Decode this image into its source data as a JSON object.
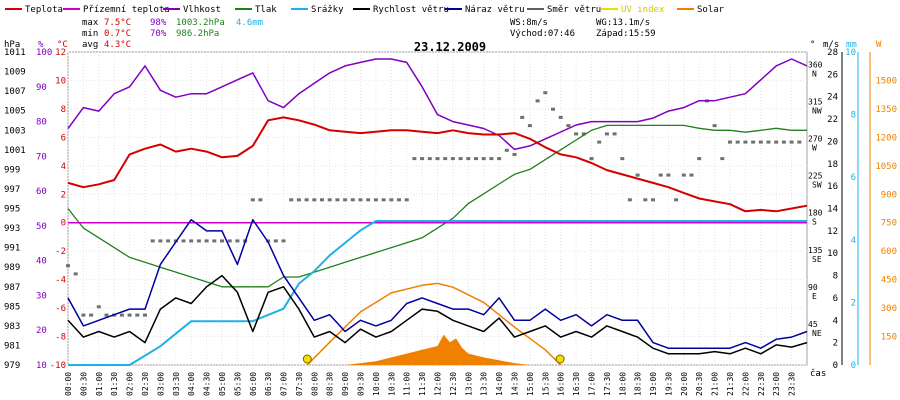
{
  "chart_data": {
    "type": "line",
    "title": "23.12.2009",
    "xlabel": "čas",
    "legend": [
      {
        "key": "temp",
        "label": "Teplota",
        "color": "#d40000"
      },
      {
        "key": "feel",
        "label": "Přízemní teplota",
        "color": "#cc00cc"
      },
      {
        "key": "hum",
        "label": "Vlhkost",
        "color": "#8000c0"
      },
      {
        "key": "press",
        "label": "Tlak",
        "color": "#208020"
      },
      {
        "key": "rain",
        "label": "Srážky",
        "color": "#20b0e8"
      },
      {
        "key": "ws",
        "label": "Rychlost větru",
        "color": "#000000"
      },
      {
        "key": "wg",
        "label": "Náraz větru",
        "color": "#0000a0"
      },
      {
        "key": "wd",
        "label": "Směr větru",
        "color": "#606060"
      },
      {
        "key": "uv",
        "label": "UV index",
        "color": "#e8e000"
      },
      {
        "key": "solar",
        "label": "Solar",
        "color": "#f08000"
      }
    ],
    "stats": {
      "max": {
        "label": "max",
        "temp": "7.5°C",
        "hum": "98%",
        "press": "1003.2hPa",
        "rain": "4.6mm"
      },
      "min": {
        "label": "min",
        "temp": "0.7°C",
        "hum": "70%",
        "press": "986.2hPa"
      },
      "avg": {
        "label": "avg",
        "temp": "4.3°C"
      }
    },
    "info": {
      "ws": "WS:8m/s",
      "wg": "WG:13.1m/s",
      "sunrise": "Východ:07:46",
      "sunset": "Západ:15:59"
    },
    "axes": {
      "press_ticks": [
        "1011",
        "1009",
        "1007",
        "1005",
        "1003",
        "1001",
        "999",
        "997",
        "995",
        "993",
        "991",
        "989",
        "987",
        "985",
        "983",
        "981",
        "979"
      ],
      "press_unit": "hPa",
      "hum_ticks": [
        "100",
        "90",
        "80",
        "70",
        "60",
        "50",
        "40",
        "30",
        "20",
        "10"
      ],
      "hum_unit": "%",
      "temp_ticks": [
        "12",
        "10",
        "8",
        "6",
        "4",
        "2",
        "0",
        "-2",
        "-4",
        "-6",
        "-8",
        "-10"
      ],
      "temp_unit": "°C",
      "dir_ticks": [
        "360 N",
        "315 NW",
        "270 W",
        "225 SW",
        "180 S",
        "135 SE",
        "90 E",
        "45 NE"
      ],
      "dir_unit": "°",
      "wind_ticks": [
        "28",
        "26",
        "24",
        "22",
        "20",
        "18",
        "16",
        "14",
        "12",
        "10",
        "8",
        "6",
        "4",
        "2",
        "0"
      ],
      "wind_unit": "m/s",
      "rain_ticks": [
        "10",
        "8",
        "6",
        "4",
        "2",
        "0"
      ],
      "rain_unit": "mm",
      "solar_ticks": [
        "1500",
        "1350",
        "1200",
        "1050",
        "900",
        "750",
        "600",
        "450",
        "300",
        "150"
      ],
      "solar_unit": "W"
    },
    "time_labels": [
      "00:00",
      "00:30",
      "01:00",
      "01:30",
      "02:00",
      "02:30",
      "03:00",
      "03:30",
      "04:00",
      "04:30",
      "05:00",
      "05:30",
      "06:00",
      "06:30",
      "07:00",
      "07:30",
      "08:00",
      "08:30",
      "09:00",
      "09:30",
      "10:00",
      "10:30",
      "11:00",
      "11:30",
      "12:00",
      "12:30",
      "13:00",
      "13:30",
      "14:00",
      "14:30",
      "15:00",
      "15:30",
      "16:00",
      "16:30",
      "17:00",
      "17:30",
      "18:00",
      "18:30",
      "19:00",
      "19:30",
      "20:00",
      "20:30",
      "21:00",
      "21:30",
      "22:00",
      "22:30",
      "23:00",
      "23:30"
    ],
    "x_range": [
      0,
      24
    ],
    "ranges": {
      "temp": [
        -10,
        12
      ],
      "hum": [
        10,
        100
      ],
      "press": [
        979,
        1011
      ],
      "wind": [
        0,
        28
      ],
      "rain": [
        0,
        10
      ],
      "solar": [
        0,
        1650
      ],
      "dir": [
        0,
        380
      ]
    },
    "series": {
      "temp": {
        "t": [
          0,
          0.5,
          1,
          1.5,
          2,
          2.5,
          3,
          3.5,
          4,
          4.5,
          5,
          5.5,
          6,
          6.5,
          7,
          7.5,
          8,
          8.5,
          9,
          9.5,
          10,
          10.5,
          11,
          11.5,
          12,
          12.5,
          13,
          13.5,
          14,
          14.5,
          15,
          15.5,
          16,
          16.5,
          17,
          17.5,
          18,
          18.5,
          19,
          19.5,
          20,
          20.5,
          21,
          21.5,
          22,
          22.5,
          23,
          23.5,
          24
        ],
        "v": [
          2.8,
          2.5,
          2.7,
          3.0,
          4.8,
          5.2,
          5.5,
          5.0,
          5.2,
          5.0,
          4.6,
          4.7,
          5.4,
          7.2,
          7.4,
          7.2,
          6.9,
          6.5,
          6.4,
          6.3,
          6.4,
          6.5,
          6.5,
          6.4,
          6.3,
          6.5,
          6.3,
          6.2,
          6.2,
          6.3,
          5.9,
          5.3,
          4.8,
          4.6,
          4.2,
          3.7,
          3.4,
          3.1,
          2.8,
          2.5,
          2.1,
          1.7,
          1.5,
          1.3,
          0.8,
          0.9,
          0.8,
          1.0,
          1.2
        ]
      },
      "feel": {
        "t": [
          0,
          24
        ],
        "v": [
          0,
          0
        ]
      },
      "hum": {
        "t": [
          0,
          0.5,
          1,
          1.5,
          2,
          2.5,
          3,
          3.5,
          4,
          4.5,
          5,
          5.5,
          6,
          6.5,
          7,
          7.5,
          8,
          8.5,
          9,
          9.5,
          10,
          10.5,
          11,
          11.5,
          12,
          12.5,
          13,
          13.5,
          14,
          14.5,
          15,
          15.5,
          16,
          16.5,
          17,
          17.5,
          18,
          18.5,
          19,
          19.5,
          20,
          20.5,
          21,
          21.5,
          22,
          22.5,
          23,
          23.5,
          24
        ],
        "v": [
          78,
          84,
          83,
          88,
          90,
          96,
          89,
          87,
          88,
          88,
          90,
          92,
          94,
          86,
          84,
          88,
          91,
          94,
          96,
          97,
          98,
          98,
          97,
          90,
          82,
          80,
          79,
          78,
          76,
          72,
          73,
          75,
          77,
          79,
          80,
          80,
          80,
          80,
          81,
          83,
          84,
          86,
          86,
          87,
          88,
          92,
          96,
          98,
          96
        ]
      },
      "press": {
        "t": [
          0,
          0.5,
          1,
          1.5,
          2,
          2.5,
          3,
          3.5,
          4,
          4.5,
          5,
          5.5,
          6,
          6.5,
          7,
          7.5,
          8,
          8.5,
          9,
          9.5,
          10,
          10.5,
          11,
          11.5,
          12,
          12.5,
          13,
          13.5,
          14,
          14.5,
          15,
          15.5,
          16,
          16.5,
          17,
          17.5,
          18,
          18.5,
          19,
          19.5,
          20,
          20.5,
          21,
          21.5,
          22,
          22.5,
          23,
          23.5,
          24
        ],
        "v": [
          995,
          993,
          992,
          991,
          990,
          989.5,
          989,
          988.5,
          988,
          987.5,
          987,
          987,
          987,
          987,
          988,
          988,
          988.5,
          989,
          989.5,
          990,
          990.5,
          991,
          991.5,
          992,
          993,
          994,
          995.5,
          996.5,
          997.5,
          998.5,
          999,
          1000,
          1001,
          1002,
          1003,
          1003.5,
          1003.5,
          1003.5,
          1003.5,
          1003.5,
          1003.5,
          1003.2,
          1003,
          1003,
          1002.8,
          1003,
          1003.2,
          1003,
          1003
        ]
      },
      "rain": {
        "t": [
          0,
          2,
          2.5,
          3,
          3.5,
          4,
          5,
          6,
          7,
          7.5,
          8,
          8.5,
          9,
          9.5,
          10,
          10.5,
          11,
          12,
          13,
          14,
          15,
          16,
          17,
          18,
          19,
          20,
          21,
          22,
          23,
          24
        ],
        "v": [
          0,
          0,
          0.3,
          0.6,
          1.0,
          1.4,
          1.4,
          1.4,
          1.8,
          2.6,
          3.0,
          3.5,
          3.9,
          4.3,
          4.6,
          4.6,
          4.6,
          4.6,
          4.6,
          4.6,
          4.6,
          4.6,
          4.6,
          4.6,
          4.6,
          4.6,
          4.6,
          4.6,
          4.6,
          4.6
        ]
      },
      "ws": {
        "t": [
          0,
          0.5,
          1,
          1.5,
          2,
          2.5,
          3,
          3.5,
          4,
          4.5,
          5,
          5.5,
          6,
          6.5,
          7,
          7.5,
          8,
          8.5,
          9,
          9.5,
          10,
          10.5,
          11,
          11.5,
          12,
          12.5,
          13,
          13.5,
          14,
          14.5,
          15,
          15.5,
          16,
          16.5,
          17,
          17.5,
          18,
          18.5,
          19,
          19.5,
          20,
          20.5,
          21,
          21.5,
          22,
          22.5,
          23,
          23.5,
          24
        ],
        "v": [
          4,
          2.5,
          3,
          2.5,
          3,
          2,
          5,
          6,
          5.5,
          7,
          8,
          6.5,
          3,
          6.5,
          7,
          5,
          2.5,
          3,
          2,
          3.2,
          2.5,
          3,
          4,
          5,
          4.8,
          4,
          3.5,
          3,
          4.2,
          2.5,
          3,
          3.5,
          2.5,
          3,
          2.5,
          3.5,
          3,
          2.5,
          1.5,
          1,
          1,
          1,
          1.2,
          1,
          1.5,
          1,
          1.8,
          1.6,
          2
        ]
      },
      "wg": {
        "t": [
          0,
          0.5,
          1,
          1.5,
          2,
          2.5,
          3,
          3.5,
          4,
          4.5,
          5,
          5.5,
          6,
          6.5,
          7,
          7.5,
          8,
          8.5,
          9,
          9.5,
          10,
          10.5,
          11,
          11.5,
          12,
          12.5,
          13,
          13.5,
          14,
          14.5,
          15,
          15.5,
          16,
          16.5,
          17,
          17.5,
          18,
          18.5,
          19,
          19.5,
          20,
          20.5,
          21,
          21.5,
          22,
          22.5,
          23,
          23.5,
          24
        ],
        "v": [
          6,
          3.5,
          4,
          4.5,
          5,
          5,
          9,
          11,
          13,
          12,
          12,
          9,
          13,
          11,
          8,
          6,
          4,
          4.5,
          3,
          4,
          3.5,
          4,
          5.5,
          6,
          5.5,
          5,
          5,
          4.5,
          6,
          4,
          4,
          5,
          4,
          4.5,
          3.5,
          4.5,
          4,
          4,
          2,
          1.5,
          1.5,
          1.5,
          1.5,
          1.5,
          2,
          1.5,
          2.3,
          2.5,
          3
        ]
      },
      "solar": {
        "t": [
          7.77,
          8.5,
          9.5,
          10.5,
          11.5,
          12.0,
          12.5,
          13.5,
          14.5,
          15.5,
          16.0
        ],
        "v": [
          0,
          120,
          280,
          380,
          420,
          430,
          410,
          330,
          200,
          80,
          0
        ]
      },
      "solar_fill": {
        "t": [
          9.0,
          9.5,
          10.0,
          10.5,
          11.0,
          11.5,
          12.0,
          12.2,
          12.4,
          12.6,
          12.8,
          13.0,
          13.5,
          14.0,
          14.5,
          15.0
        ],
        "v": [
          0,
          10,
          20,
          40,
          60,
          80,
          100,
          160,
          120,
          140,
          90,
          60,
          40,
          25,
          10,
          0
        ]
      },
      "dir": {
        "t": [
          0.0,
          0.25,
          0.5,
          0.75,
          1.0,
          1.25,
          1.5,
          1.75,
          2.0,
          2.25,
          2.5,
          2.75,
          3.0,
          3.25,
          3.5,
          3.75,
          4.0,
          4.25,
          4.5,
          4.75,
          5.0,
          5.25,
          5.5,
          5.75,
          6.0,
          6.25,
          6.5,
          6.75,
          7.0,
          7.25,
          7.5,
          7.75,
          8.0,
          8.25,
          8.5,
          8.75,
          9.0,
          9.25,
          9.5,
          9.75,
          10.0,
          10.25,
          10.5,
          10.75,
          11.0,
          11.25,
          11.5,
          11.75,
          12.0,
          12.25,
          12.5,
          12.75,
          13.0,
          13.25,
          13.5,
          13.75,
          14.0,
          14.25,
          14.5,
          14.75,
          15.0,
          15.25,
          15.5,
          15.75,
          16.0,
          16.25,
          16.5,
          16.75,
          17.0,
          17.25,
          17.5,
          17.75,
          18.0,
          18.25,
          18.5,
          18.75,
          19.0,
          19.25,
          19.5,
          19.75,
          20.0,
          20.25,
          20.5,
          20.75,
          21.0,
          21.25,
          21.5,
          21.75,
          22.0,
          22.25,
          22.5,
          22.75,
          23.0,
          23.25,
          23.5,
          23.75
        ],
        "v": [
          120,
          110,
          60,
          60,
          70,
          60,
          60,
          60,
          60,
          60,
          60,
          150,
          150,
          150,
          150,
          150,
          150,
          150,
          150,
          150,
          150,
          150,
          150,
          150,
          200,
          200,
          150,
          150,
          150,
          200,
          200,
          200,
          200,
          200,
          200,
          200,
          200,
          200,
          200,
          200,
          200,
          200,
          200,
          200,
          200,
          250,
          250,
          250,
          250,
          250,
          250,
          250,
          250,
          250,
          250,
          250,
          250,
          260,
          255,
          300,
          290,
          320,
          330,
          310,
          300,
          290,
          280,
          280,
          250,
          270,
          280,
          280,
          250,
          200,
          230,
          200,
          200,
          230,
          230,
          200,
          230,
          230,
          250,
          320,
          290,
          250,
          270,
          270,
          270,
          270,
          270,
          270,
          270,
          270,
          270,
          270,
          270
        ]
      }
    },
    "markers": [
      {
        "label": "sunrise",
        "t": 7.77
      },
      {
        "label": "sunset",
        "t": 15.98
      }
    ]
  }
}
